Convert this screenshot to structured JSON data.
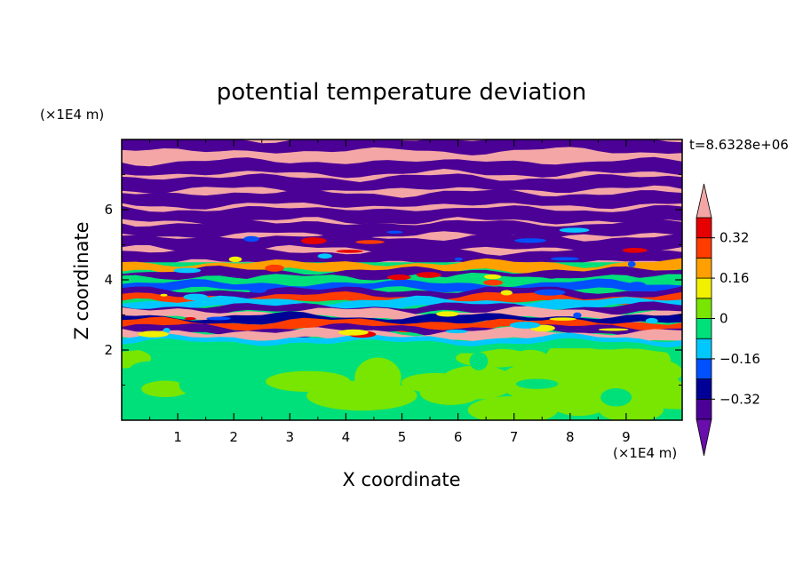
{
  "chart_data": {
    "type": "heatmap",
    "title": "potential temperature deviation",
    "xlabel": "X coordinate",
    "ylabel": "Z coordinate",
    "x_unit": "(×1E4 m)",
    "y_unit": "(×1E4 m)",
    "time_label": "t=8.6328e+06",
    "xlim": [
      0,
      10
    ],
    "ylim": [
      0,
      8
    ],
    "x_ticks": [
      "1",
      "2",
      "3",
      "4",
      "5",
      "6",
      "7",
      "8",
      "9"
    ],
    "y_ticks": [
      "2",
      "4",
      "6"
    ],
    "colorbar": {
      "levels": [
        -0.4,
        -0.32,
        -0.24,
        -0.16,
        -0.08,
        0,
        0.08,
        0.16,
        0.24,
        0.32,
        0.4
      ],
      "labels": [
        "0.32",
        "0.16",
        "0",
        "−0.16",
        "−0.32"
      ],
      "colors": [
        "#6a0dad",
        "#4b0096",
        "#000096",
        "#0050ff",
        "#00c8ff",
        "#00e07a",
        "#78e600",
        "#f0f000",
        "#ffa000",
        "#ff3c00",
        "#e60000",
        "#f4a6a6"
      ]
    },
    "regions": [
      {
        "z_range": [
          0,
          2
        ],
        "description": "green and lime-green blobs near zero deviation"
      },
      {
        "z_range": [
          2,
          4.5
        ],
        "description": "mixed turbulent layers spanning full color range"
      },
      {
        "z_range": [
          4.5,
          8
        ],
        "description": "alternating purple and pink horizontal bands"
      }
    ]
  }
}
